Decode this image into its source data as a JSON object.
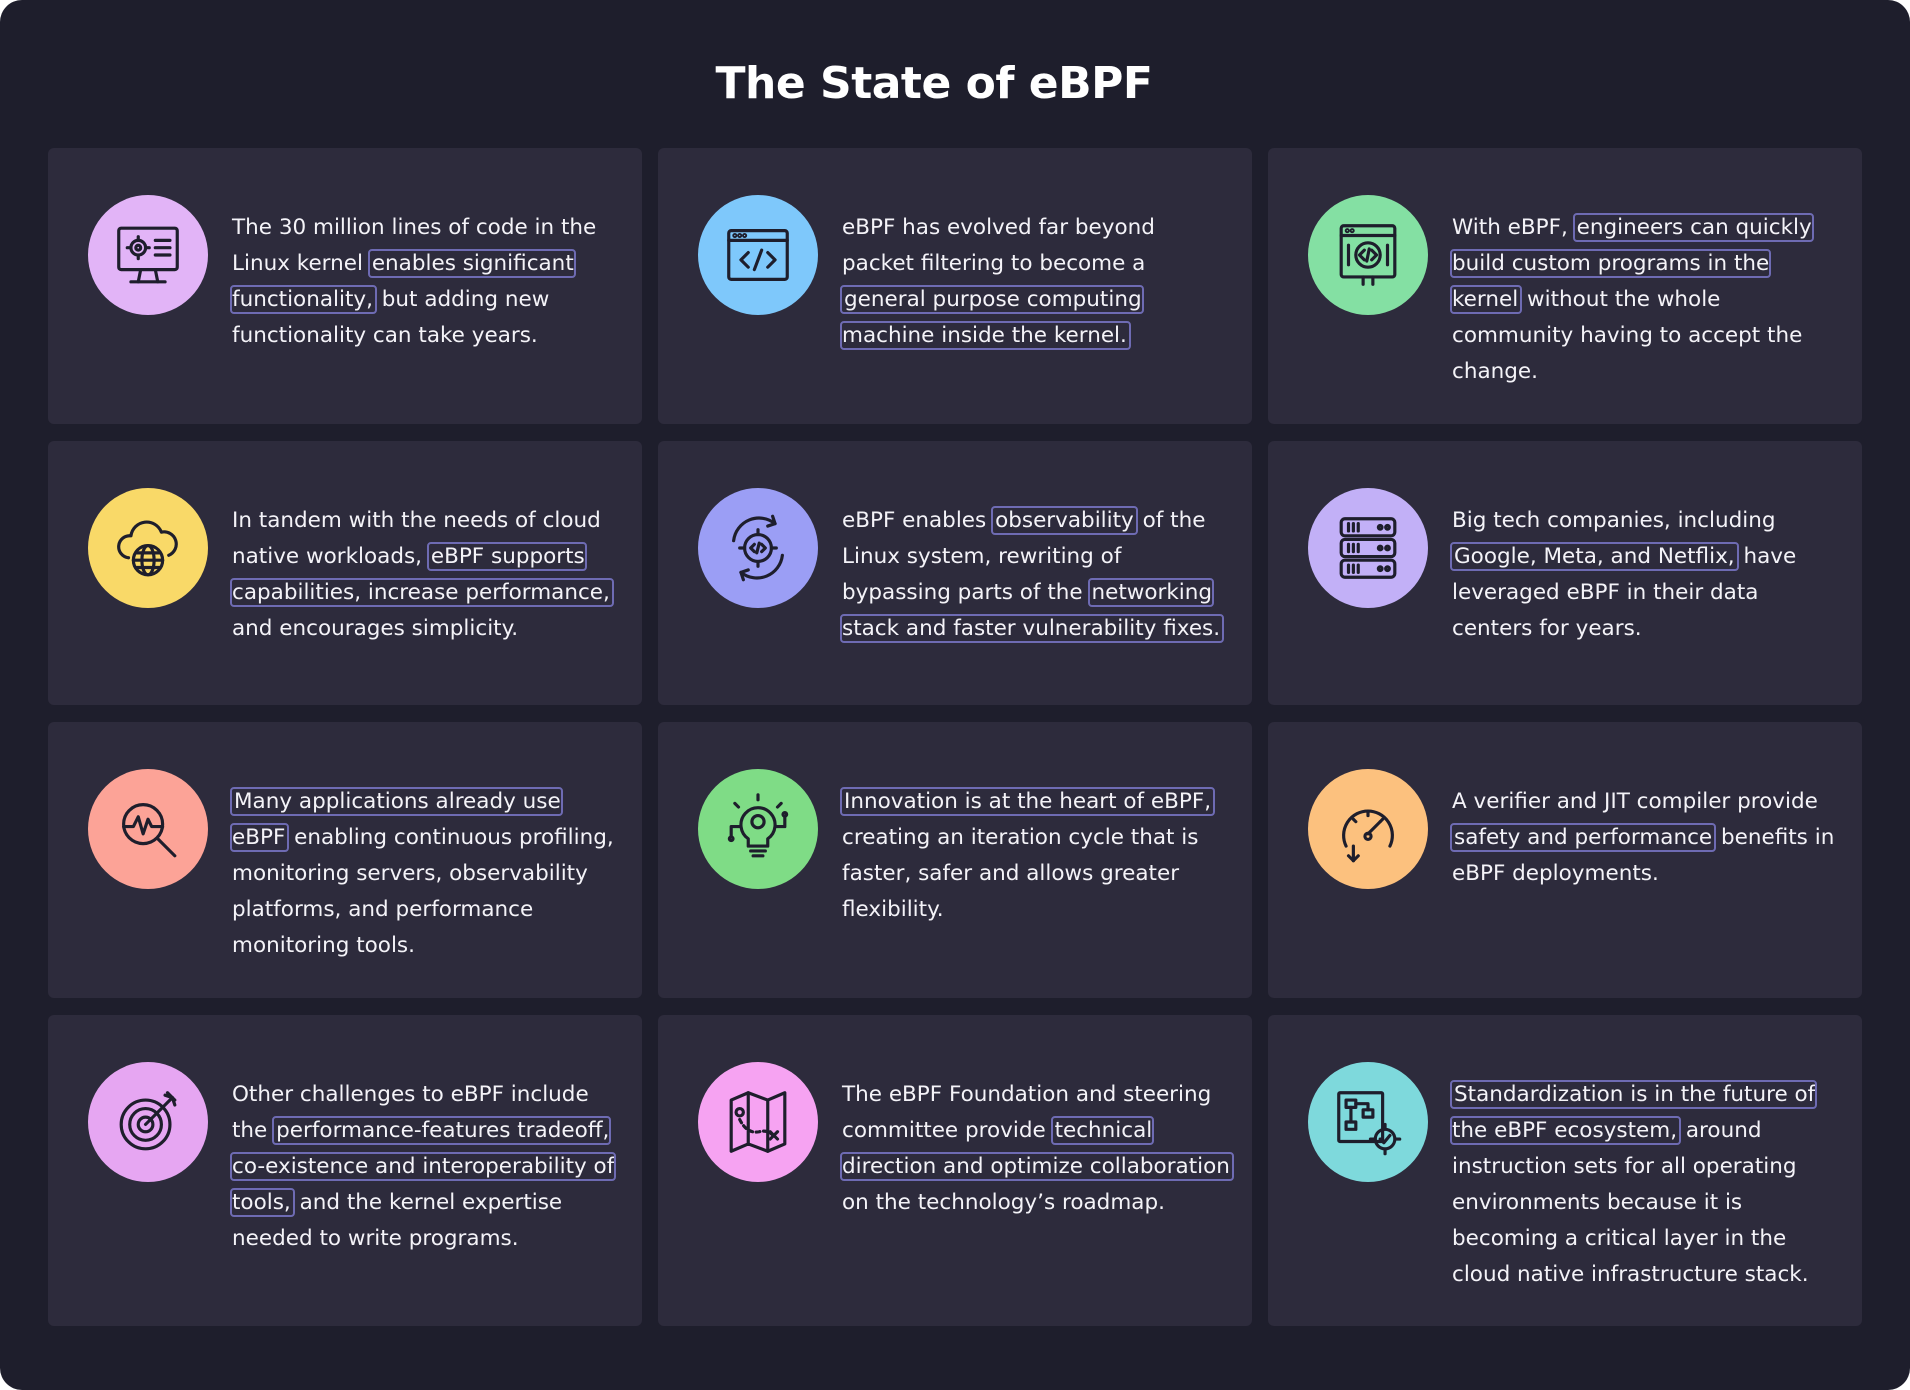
{
  "title": "The State of eBPF",
  "colors": {
    "background": "#1e1e2c",
    "card": "#2d2b3c",
    "highlight_border": "#6e6bb3"
  },
  "cards": [
    {
      "icon": "monitor-gear-icon",
      "icon_color": "#e2b4f7",
      "segments": [
        {
          "text": "The 30 million lines of code in the Linux kernel",
          "hl": false
        },
        {
          "text": "enables significant functionality,",
          "hl": true
        },
        {
          "text": "but adding new functionality can take years.",
          "hl": false
        }
      ]
    },
    {
      "icon": "code-window-icon",
      "icon_color": "#7ec8fb",
      "segments": [
        {
          "text": "eBPF has evolved far beyond packet filtering to become a",
          "hl": false
        },
        {
          "text": "general purpose computing machine inside the kernel.",
          "hl": true
        }
      ]
    },
    {
      "icon": "code-screen-icon",
      "icon_color": "#84e0a3",
      "segments": [
        {
          "text": "With eBPF,",
          "hl": false
        },
        {
          "text": "engineers can quickly build custom programs in the kernel",
          "hl": true
        },
        {
          "text": "without the whole community having to accept the change.",
          "hl": false
        }
      ]
    },
    {
      "icon": "cloud-globe-icon",
      "icon_color": "#f9d968",
      "segments": [
        {
          "text": "In tandem with the needs of cloud native workloads,",
          "hl": false
        },
        {
          "text": "eBPF supports capabilities, increase performance,",
          "hl": true
        },
        {
          "text": "and encourages simplicity.",
          "hl": false
        }
      ]
    },
    {
      "icon": "gear-cycle-icon",
      "icon_color": "#9b9ef5",
      "segments": [
        {
          "text": "eBPF enables",
          "hl": false
        },
        {
          "text": "observability",
          "hl": true
        },
        {
          "text": "of the Linux system, rewriting of bypassing parts of the",
          "hl": false
        },
        {
          "text": "networking stack and faster vulnerability fixes.",
          "hl": true
        }
      ]
    },
    {
      "icon": "server-rack-icon",
      "icon_color": "#c2b0f7",
      "segments": [
        {
          "text": "Big tech companies, including",
          "hl": false
        },
        {
          "text": "Google, Meta, and Netflix,",
          "hl": true
        },
        {
          "text": "have leveraged eBPF in their data centers for years.",
          "hl": false
        }
      ]
    },
    {
      "icon": "magnifier-pulse-icon",
      "icon_color": "#fca397",
      "segments": [
        {
          "text": "Many applications already use eBPF",
          "hl": true
        },
        {
          "text": "enabling continuous profiling, monitoring servers, observability platforms, and performance monitoring tools.",
          "hl": false
        }
      ]
    },
    {
      "icon": "lightbulb-circuit-icon",
      "icon_color": "#7fdc86",
      "segments": [
        {
          "text": "Innovation is at the heart of eBPF,",
          "hl": true
        },
        {
          "text": "creating an iteration cycle that is faster, safer and allows greater flexibility.",
          "hl": false
        }
      ]
    },
    {
      "icon": "speedometer-icon",
      "icon_color": "#fcc17e",
      "segments": [
        {
          "text": "A verifier and JIT compiler provide",
          "hl": false
        },
        {
          "text": "safety and performance",
          "hl": true
        },
        {
          "text": "benefits in eBPF deployments.",
          "hl": false
        }
      ]
    },
    {
      "icon": "target-arrow-icon",
      "icon_color": "#e6a6f2",
      "segments": [
        {
          "text": "Other challenges to eBPF include the",
          "hl": false
        },
        {
          "text": "performance-features tradeoff, co-existence and interoperability of tools,",
          "hl": true
        },
        {
          "text": "and the kernel expertise needed to write programs.",
          "hl": false
        }
      ]
    },
    {
      "icon": "roadmap-icon",
      "icon_color": "#f6a3f2",
      "segments": [
        {
          "text": "The eBPF Foundation and steering committee provide",
          "hl": false
        },
        {
          "text": "technical direction and optimize collaboration",
          "hl": true
        },
        {
          "text": "on the technology’s roadmap.",
          "hl": false
        }
      ]
    },
    {
      "icon": "flowchart-gear-icon",
      "icon_color": "#7ed9dc",
      "segments": [
        {
          "text": "Standardization is in the future of the eBPF ecosystem,",
          "hl": true
        },
        {
          "text": "around instruction sets for all operating environments because it is becoming a critical layer in the cloud native infrastructure stack.",
          "hl": false
        }
      ]
    }
  ]
}
